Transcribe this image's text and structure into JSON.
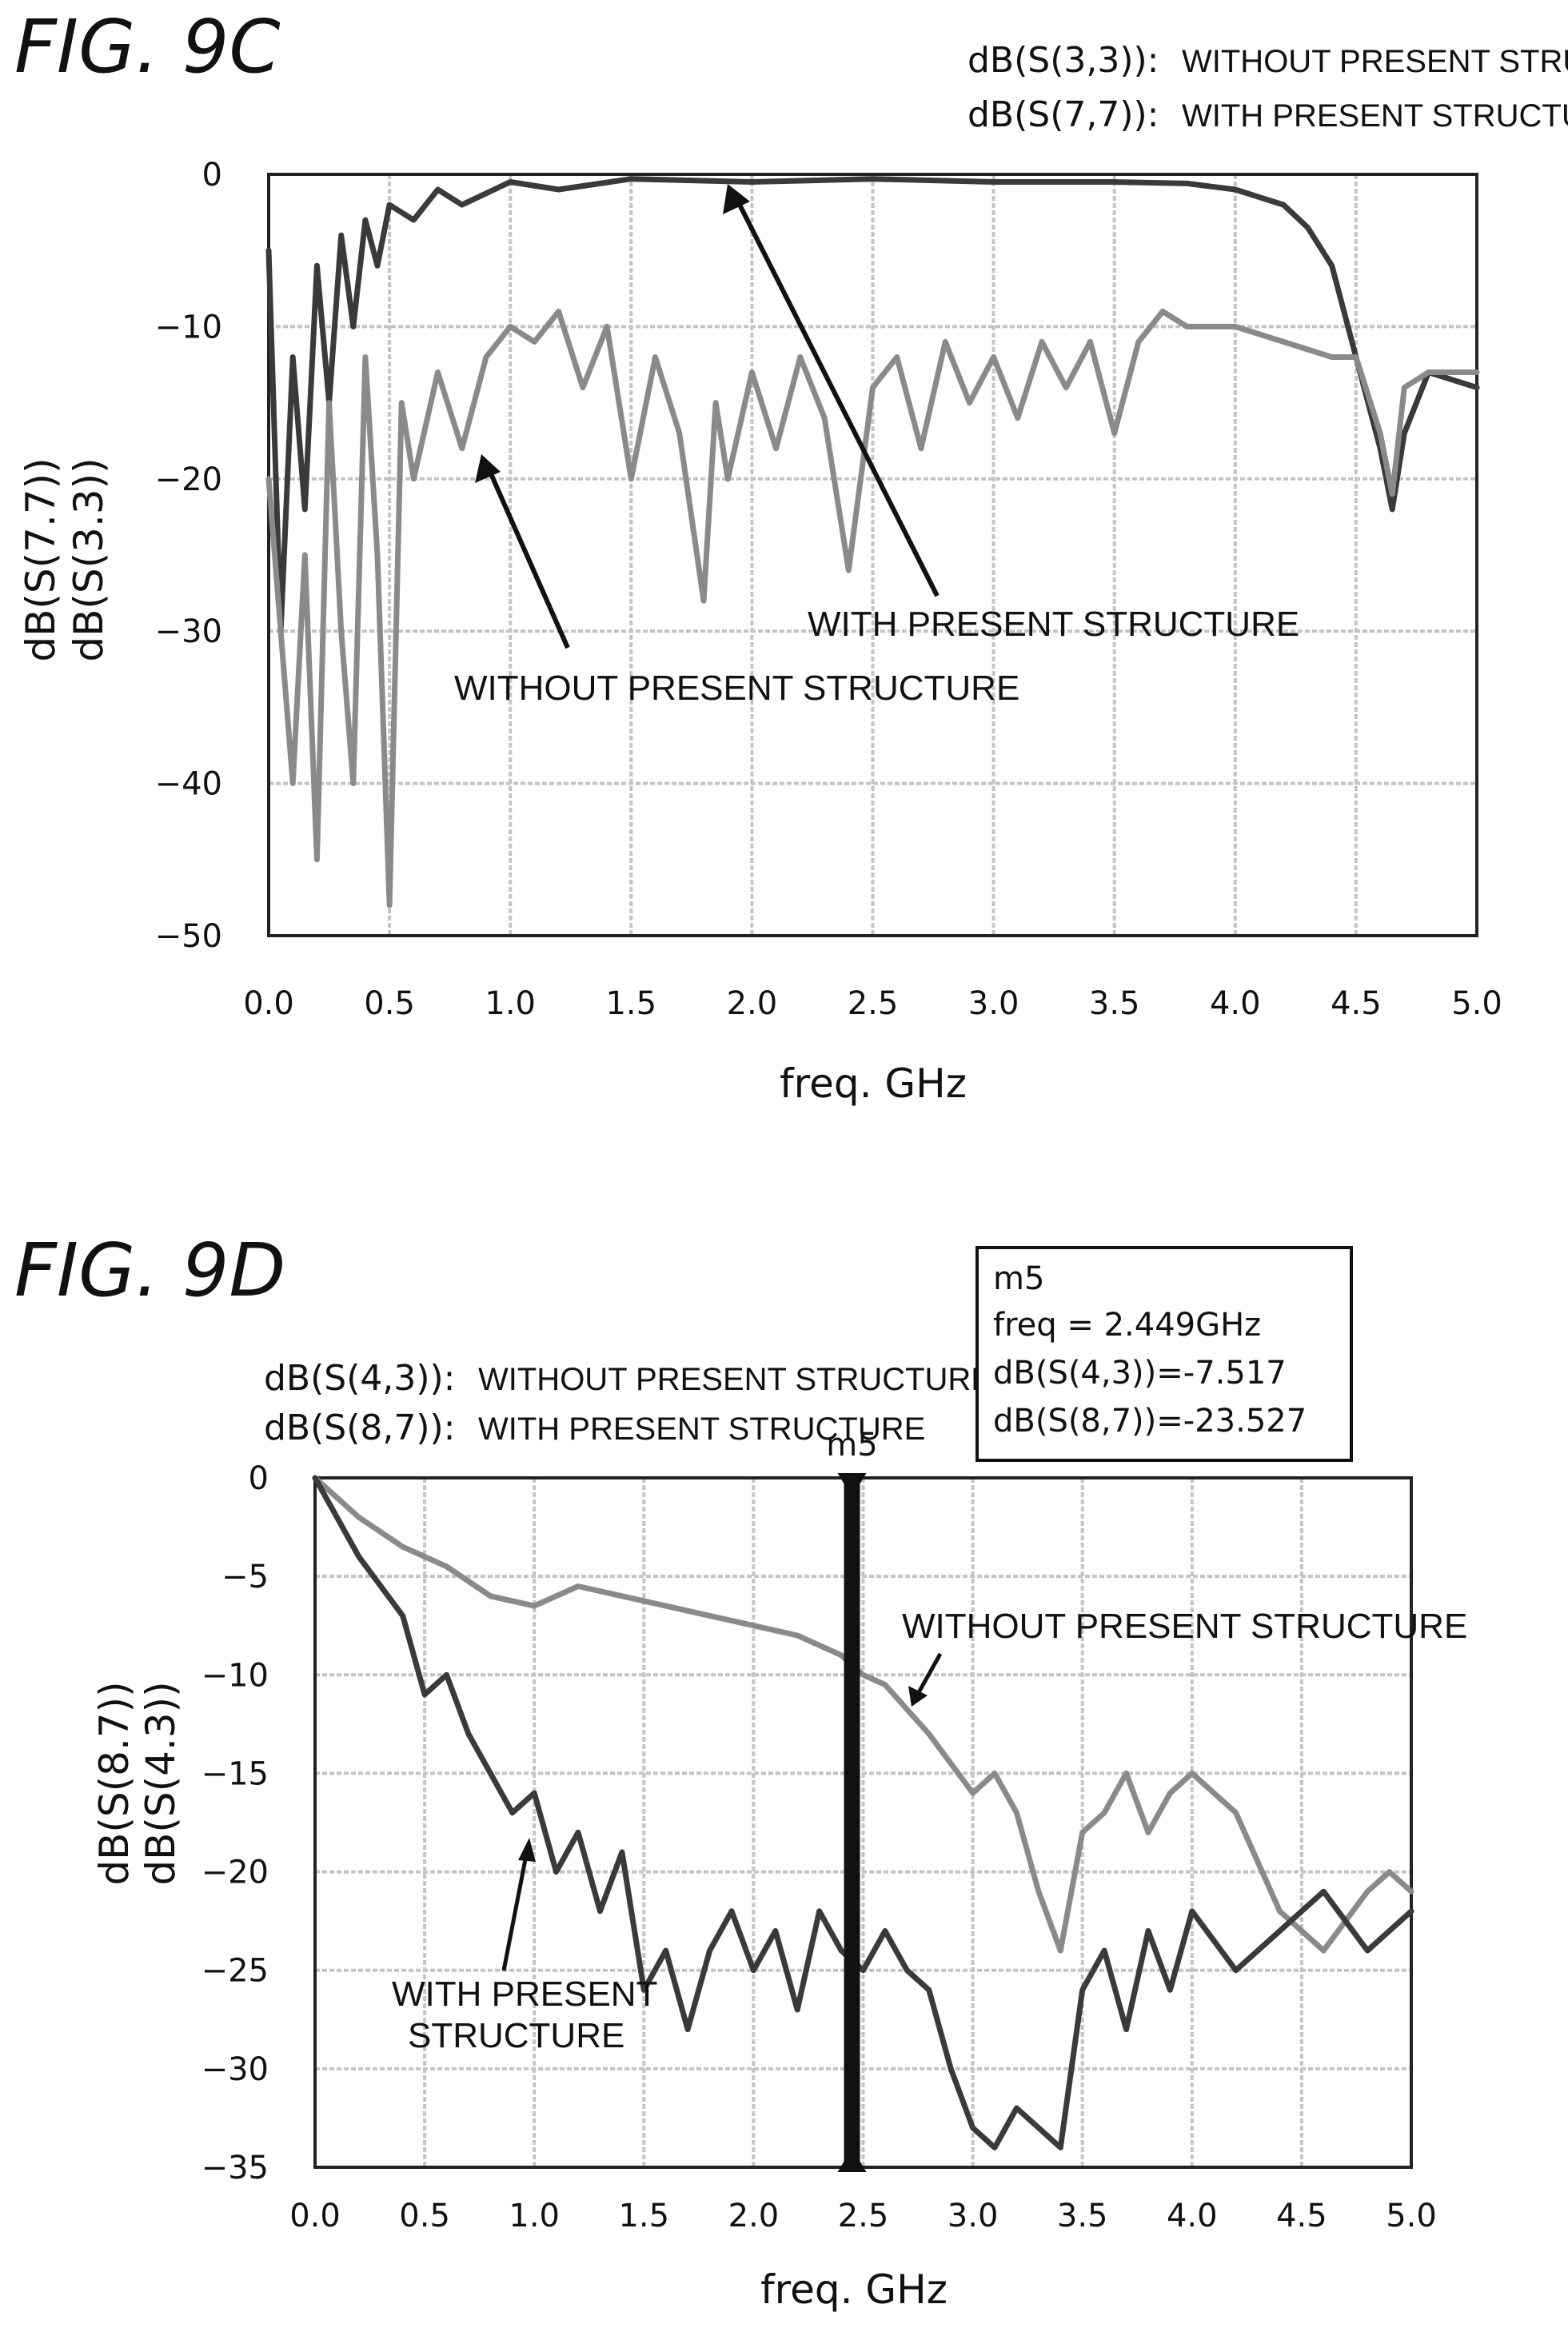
{
  "chart_data": [
    {
      "type": "line",
      "fig_label": "FIG. 9C",
      "xlabel": "freq. GHz",
      "ylabel_lines": [
        "dB(S(7.7))",
        "dB(S(3.3))"
      ],
      "xlim": [
        0,
        5
      ],
      "ylim": [
        -50,
        0
      ],
      "x_ticks": [
        "0.0",
        "0.5",
        "1.0",
        "1.5",
        "2.0",
        "2.5",
        "3.0",
        "3.5",
        "4.0",
        "4.5",
        "5.0"
      ],
      "y_ticks": [
        "0",
        "−10",
        "−20",
        "−30",
        "−40",
        "−50"
      ],
      "grid": true,
      "legend": [
        {
          "key": "dB(S(3,3)):",
          "desc": "WITHOUT PRESENT STRUCTURE"
        },
        {
          "key": "dB(S(7,7)):",
          "desc": "WITH PRESENT STRUCTURE"
        }
      ],
      "annotations": [
        "WITH PRESENT STRUCTURE",
        "WITHOUT PRESENT STRUCTURE"
      ],
      "series": [
        {
          "color": "#3a3a3a",
          "x": [
            0.0,
            0.05,
            0.1,
            0.15,
            0.2,
            0.25,
            0.3,
            0.35,
            0.4,
            0.45,
            0.5,
            0.6,
            0.7,
            0.8,
            1.0,
            1.2,
            1.5,
            2.0,
            2.5,
            3.0,
            3.5,
            3.8,
            4.0,
            4.1,
            4.2,
            4.3,
            4.4,
            4.5,
            4.6,
            4.65,
            4.7,
            4.8,
            5.0
          ],
          "y": [
            -5,
            -30,
            -12,
            -22,
            -6,
            -15,
            -4,
            -10,
            -3,
            -6,
            -2,
            -3,
            -1,
            -2,
            -0.5,
            -1,
            -0.3,
            -0.5,
            -0.3,
            -0.5,
            -0.5,
            -0.6,
            -1,
            -1.5,
            -2,
            -3.5,
            -6,
            -12,
            -18,
            -22,
            -17,
            -13,
            -14
          ]
        },
        {
          "color": "#8a8a8a",
          "x": [
            0.0,
            0.1,
            0.15,
            0.2,
            0.25,
            0.3,
            0.35,
            0.4,
            0.45,
            0.5,
            0.55,
            0.6,
            0.7,
            0.8,
            0.9,
            1.0,
            1.1,
            1.2,
            1.3,
            1.4,
            1.5,
            1.6,
            1.7,
            1.8,
            1.85,
            1.9,
            2.0,
            2.1,
            2.2,
            2.3,
            2.4,
            2.5,
            2.6,
            2.7,
            2.8,
            2.9,
            3.0,
            3.1,
            3.2,
            3.3,
            3.4,
            3.5,
            3.6,
            3.7,
            3.8,
            4.0,
            4.2,
            4.4,
            4.5,
            4.6,
            4.65,
            4.7,
            4.8,
            5.0
          ],
          "y": [
            -20,
            -40,
            -25,
            -45,
            -15,
            -30,
            -40,
            -12,
            -25,
            -48,
            -15,
            -20,
            -13,
            -18,
            -12,
            -10,
            -11,
            -9,
            -14,
            -10,
            -20,
            -12,
            -17,
            -28,
            -15,
            -20,
            -13,
            -18,
            -12,
            -16,
            -26,
            -14,
            -12,
            -18,
            -11,
            -15,
            -12,
            -16,
            -11,
            -14,
            -11,
            -17,
            -11,
            -9,
            -10,
            -10,
            -11,
            -12,
            -12,
            -17,
            -21,
            -14,
            -13,
            -13
          ]
        }
      ]
    },
    {
      "type": "line",
      "fig_label": "FIG. 9D",
      "xlabel": "freq. GHz",
      "ylabel_lines": [
        "dB(S(8.7))",
        "dB(S(4.3))"
      ],
      "xlim": [
        0,
        5
      ],
      "ylim": [
        -35,
        0
      ],
      "x_ticks": [
        "0.0",
        "0.5",
        "1.0",
        "1.5",
        "2.0",
        "2.5",
        "3.0",
        "3.5",
        "4.0",
        "4.5",
        "5.0"
      ],
      "y_ticks": [
        "0",
        "−5",
        "−10",
        "−15",
        "−20",
        "−25",
        "−30",
        "−35"
      ],
      "grid": true,
      "legend": [
        {
          "key": "dB(S(4,3)):",
          "desc": "WITHOUT PRESENT STRUCTURE"
        },
        {
          "key": "dB(S(8,7)):",
          "desc": "WITH PRESENT STRUCTURE"
        }
      ],
      "annotations": [
        "WITHOUT PRESENT STRUCTURE",
        "WITH PRESENT",
        "STRUCTURE"
      ],
      "marker": {
        "name": "m5",
        "x": 2.449,
        "box_lines": [
          "m5",
          "freq = 2.449GHz",
          "dB(S(4,3))=-7.517",
          "dB(S(8,7))=-23.527"
        ]
      },
      "series": [
        {
          "color": "#8a8a8a",
          "x": [
            0.0,
            0.2,
            0.4,
            0.6,
            0.8,
            1.0,
            1.2,
            1.4,
            1.6,
            1.8,
            2.0,
            2.2,
            2.4,
            2.5,
            2.6,
            2.8,
            3.0,
            3.1,
            3.2,
            3.3,
            3.4,
            3.5,
            3.6,
            3.7,
            3.8,
            3.9,
            4.0,
            4.2,
            4.4,
            4.6,
            4.8,
            4.9,
            5.0
          ],
          "y": [
            0,
            -2,
            -3.5,
            -4.5,
            -6,
            -6.5,
            -5.5,
            -6,
            -6.5,
            -7,
            -7.5,
            -8,
            -9,
            -10,
            -10.5,
            -13,
            -16,
            -15,
            -17,
            -21,
            -24,
            -18,
            -17,
            -15,
            -18,
            -16,
            -15,
            -17,
            -22,
            -24,
            -21,
            -20,
            -21
          ]
        },
        {
          "color": "#3a3a3a",
          "x": [
            0.0,
            0.2,
            0.4,
            0.5,
            0.6,
            0.7,
            0.8,
            0.9,
            1.0,
            1.1,
            1.2,
            1.3,
            1.4,
            1.5,
            1.6,
            1.7,
            1.8,
            1.9,
            2.0,
            2.1,
            2.2,
            2.3,
            2.4,
            2.5,
            2.6,
            2.7,
            2.8,
            2.9,
            3.0,
            3.1,
            3.2,
            3.3,
            3.4,
            3.5,
            3.6,
            3.7,
            3.8,
            3.9,
            4.0,
            4.2,
            4.4,
            4.6,
            4.8,
            5.0
          ],
          "y": [
            0,
            -4,
            -7,
            -11,
            -10,
            -13,
            -15,
            -17,
            -16,
            -20,
            -18,
            -22,
            -19,
            -26,
            -24,
            -28,
            -24,
            -22,
            -25,
            -23,
            -27,
            -22,
            -24,
            -25,
            -23,
            -25,
            -26,
            -30,
            -33,
            -34,
            -32,
            -33,
            -34,
            -26,
            -24,
            -28,
            -23,
            -26,
            -22,
            -25,
            -23,
            -21,
            -24,
            -22
          ]
        }
      ]
    }
  ]
}
